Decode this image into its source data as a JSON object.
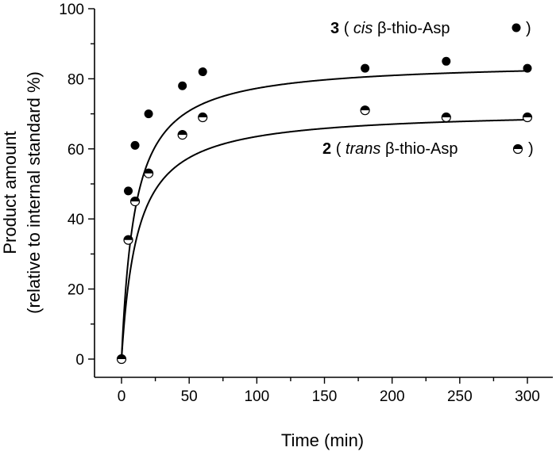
{
  "chart_data": {
    "type": "scatter",
    "xlabel": "Time (min)",
    "ylabel_line1": "Product amount",
    "ylabel_line2": "(relative to internal standard %)",
    "xlim": [
      -10,
      310
    ],
    "ylim": [
      -5,
      100
    ],
    "x_ticks": [
      0,
      50,
      100,
      150,
      200,
      250,
      300
    ],
    "y_ticks": [
      0,
      20,
      40,
      60,
      80,
      100
    ],
    "x_tick_labels": [
      "0",
      "50",
      "100",
      "150",
      "200",
      "250",
      "300"
    ],
    "y_tick_labels": [
      "0",
      "20",
      "40",
      "60",
      "80",
      "100"
    ],
    "series": [
      {
        "name": "3 (cis β-thio-Asp)",
        "compound": "3",
        "isomer": "cis",
        "suffix": " β-thio-Asp",
        "marker": "filled",
        "x": [
          0,
          5,
          10,
          20,
          45,
          60,
          180,
          240,
          300
        ],
        "y": [
          0,
          48,
          61,
          70,
          78,
          82,
          83,
          85,
          83
        ],
        "fit": {
          "ymax": 85,
          "k": 0.1
        }
      },
      {
        "name": "2 (trans β-thio-Asp)",
        "compound": "2",
        "isomer": "trans",
        "suffix": " β-thio-Asp",
        "marker": "half-filled",
        "x": [
          0,
          5,
          10,
          20,
          45,
          60,
          180,
          240,
          300
        ],
        "y": [
          0,
          34,
          45,
          53,
          64,
          69,
          71,
          69,
          69
        ],
        "fit": {
          "ymax": 71,
          "k": 0.085
        }
      }
    ],
    "legend_placement": "right, next to each curve",
    "grid": false
  }
}
